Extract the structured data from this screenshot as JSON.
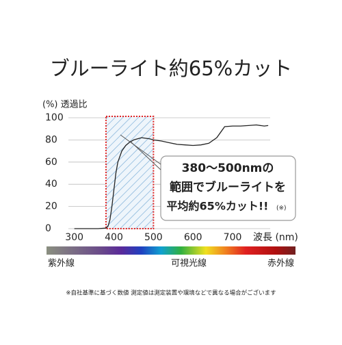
{
  "chart_data": {
    "type": "line",
    "title": "ブルーライト約65%カット",
    "y_label": "(%) 透過比",
    "x_label": "波長 (nm)",
    "x": [
      300,
      320,
      340,
      360,
      380,
      385,
      390,
      395,
      400,
      405,
      410,
      420,
      430,
      440,
      450,
      460,
      470,
      480,
      490,
      500,
      520,
      540,
      560,
      580,
      600,
      620,
      640,
      660,
      670,
      680,
      700,
      720,
      740,
      760,
      780,
      790
    ],
    "series": [
      {
        "name": "透過比",
        "color": "#222222",
        "values": [
          0,
          0,
          0,
          0,
          0.5,
          2,
          8,
          20,
          35,
          50,
          60,
          70,
          75,
          78,
          80,
          81,
          82,
          81.5,
          81,
          80,
          79,
          77.5,
          76,
          75.5,
          75,
          75.5,
          77,
          82,
          87,
          92,
          92.5,
          92.5,
          93,
          93.5,
          92.5,
          93
        ]
      }
    ],
    "xlim": [
      285,
      795
    ],
    "xticks": [
      300,
      400,
      500,
      600,
      700
    ],
    "ylim": [
      0,
      100
    ],
    "yticks": [
      0,
      20,
      40,
      60,
      80,
      100
    ],
    "grid": true,
    "highlight": [
      380,
      500
    ],
    "highlight_color": "#e02020",
    "annotation": [
      "380～500nmの",
      "範囲でブルーライトを",
      "平均約65%カット!!",
      "(※)"
    ],
    "spectrum_labels": [
      "紫外線",
      "可視光線",
      "赤外線"
    ],
    "footnote": "※自社基準に基づく数値 測定値は測定装置や環境などで異なる場合がございます"
  }
}
